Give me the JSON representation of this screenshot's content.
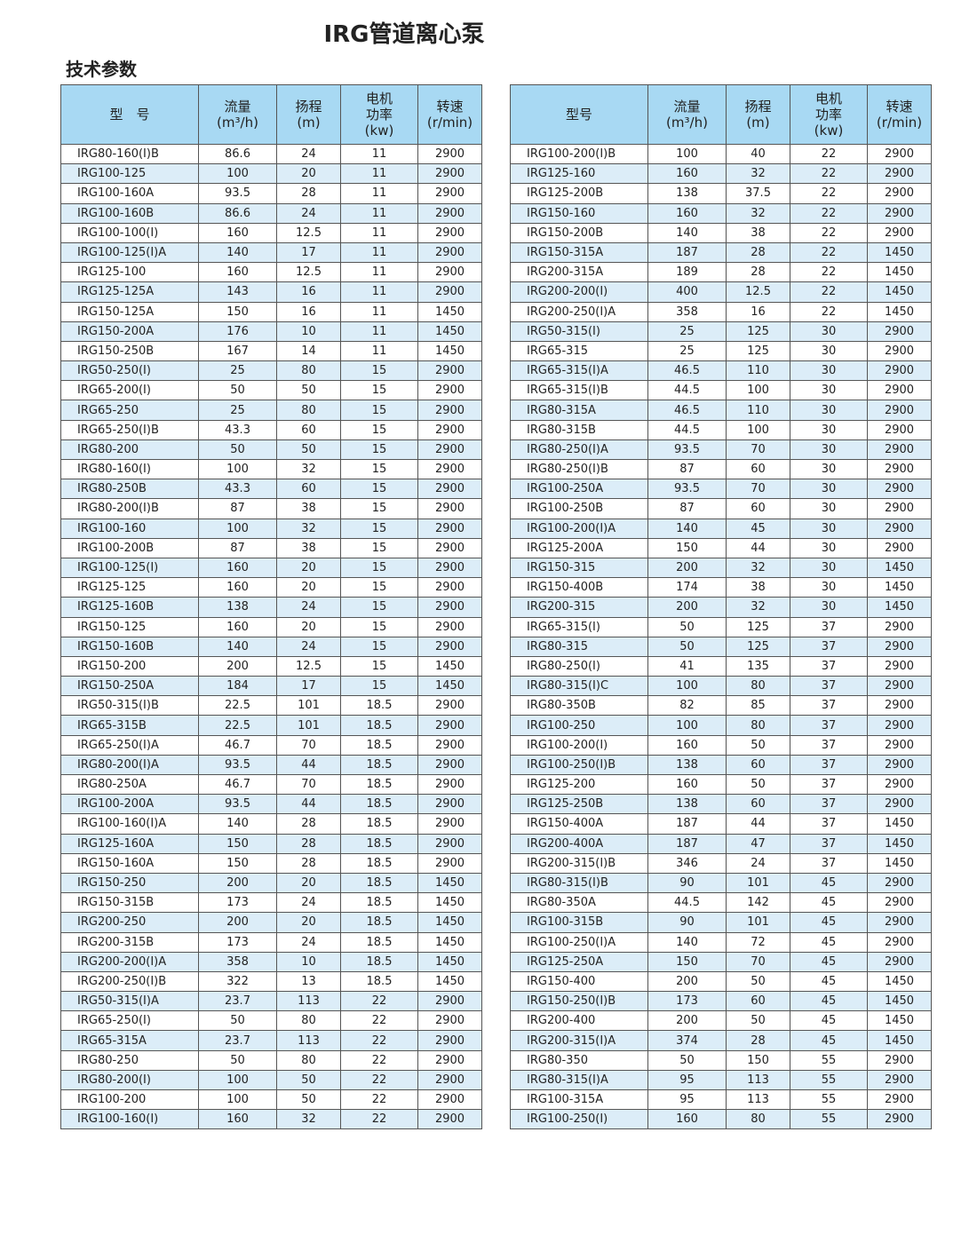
{
  "title": "IRG管道离心泵",
  "subtitle": "技术参数",
  "headers": {
    "model_left": "型　号",
    "model_right": "型号",
    "flow": "流量",
    "flow_unit": "(m³/h)",
    "head": "扬程",
    "head_unit": "(m)",
    "power": "电机功率",
    "power_unit": "(kw)",
    "speed": "转速",
    "speed_unit": "(r/min)"
  },
  "colors": {
    "header_bg": "#a8d9f3",
    "stripe": "#dcedf8",
    "border": "#555555"
  },
  "left_rows": [
    [
      "IRG80-160(I)B",
      "86.6",
      "24",
      "11",
      "2900"
    ],
    [
      "IRG100-125",
      "100",
      "20",
      "11",
      "2900"
    ],
    [
      "IRG100-160A",
      "93.5",
      "28",
      "11",
      "2900"
    ],
    [
      "IRG100-160B",
      "86.6",
      "24",
      "11",
      "2900"
    ],
    [
      "IRG100-100(I)",
      "160",
      "12.5",
      "11",
      "2900"
    ],
    [
      "IRG100-125(I)A",
      "140",
      "17",
      "11",
      "2900"
    ],
    [
      "IRG125-100",
      "160",
      "12.5",
      "11",
      "2900"
    ],
    [
      "IRG125-125A",
      "143",
      "16",
      "11",
      "2900"
    ],
    [
      "IRG150-125A",
      "150",
      "16",
      "11",
      "1450"
    ],
    [
      "IRG150-200A",
      "176",
      "10",
      "11",
      "1450"
    ],
    [
      "IRG150-250B",
      "167",
      "14",
      "11",
      "1450"
    ],
    [
      "IRG50-250(I)",
      "25",
      "80",
      "15",
      "2900"
    ],
    [
      "IRG65-200(I)",
      "50",
      "50",
      "15",
      "2900"
    ],
    [
      "IRG65-250",
      "25",
      "80",
      "15",
      "2900"
    ],
    [
      "IRG65-250(I)B",
      "43.3",
      "60",
      "15",
      "2900"
    ],
    [
      "IRG80-200",
      "50",
      "50",
      "15",
      "2900"
    ],
    [
      "IRG80-160(I)",
      "100",
      "32",
      "15",
      "2900"
    ],
    [
      "IRG80-250B",
      "43.3",
      "60",
      "15",
      "2900"
    ],
    [
      "IRG80-200(I)B",
      "87",
      "38",
      "15",
      "2900"
    ],
    [
      "IRG100-160",
      "100",
      "32",
      "15",
      "2900"
    ],
    [
      "IRG100-200B",
      "87",
      "38",
      "15",
      "2900"
    ],
    [
      "IRG100-125(I)",
      "160",
      "20",
      "15",
      "2900"
    ],
    [
      "IRG125-125",
      "160",
      "20",
      "15",
      "2900"
    ],
    [
      "IRG125-160B",
      "138",
      "24",
      "15",
      "2900"
    ],
    [
      "IRG150-125",
      "160",
      "20",
      "15",
      "2900"
    ],
    [
      "IRG150-160B",
      "140",
      "24",
      "15",
      "2900"
    ],
    [
      "IRG150-200",
      "200",
      "12.5",
      "15",
      "1450"
    ],
    [
      "IRG150-250A",
      "184",
      "17",
      "15",
      "1450"
    ],
    [
      "IRG50-315(I)B",
      "22.5",
      "101",
      "18.5",
      "2900"
    ],
    [
      "IRG65-315B",
      "22.5",
      "101",
      "18.5",
      "2900"
    ],
    [
      "IRG65-250(I)A",
      "46.7",
      "70",
      "18.5",
      "2900"
    ],
    [
      "IRG80-200(I)A",
      "93.5",
      "44",
      "18.5",
      "2900"
    ],
    [
      "IRG80-250A",
      "46.7",
      "70",
      "18.5",
      "2900"
    ],
    [
      "IRG100-200A",
      "93.5",
      "44",
      "18.5",
      "2900"
    ],
    [
      "IRG100-160(I)A",
      "140",
      "28",
      "18.5",
      "2900"
    ],
    [
      "IRG125-160A",
      "150",
      "28",
      "18.5",
      "2900"
    ],
    [
      "IRG150-160A",
      "150",
      "28",
      "18.5",
      "2900"
    ],
    [
      "IRG150-250",
      "200",
      "20",
      "18.5",
      "1450"
    ],
    [
      "IRG150-315B",
      "173",
      "24",
      "18.5",
      "1450"
    ],
    [
      "IRG200-250",
      "200",
      "20",
      "18.5",
      "1450"
    ],
    [
      "IRG200-315B",
      "173",
      "24",
      "18.5",
      "1450"
    ],
    [
      "IRG200-200(I)A",
      "358",
      "10",
      "18.5",
      "1450"
    ],
    [
      "IRG200-250(I)B",
      "322",
      "13",
      "18.5",
      "1450"
    ],
    [
      "IRG50-315(I)A",
      "23.7",
      "113",
      "22",
      "2900"
    ],
    [
      "IRG65-250(I)",
      "50",
      "80",
      "22",
      "2900"
    ],
    [
      "IRG65-315A",
      "23.7",
      "113",
      "22",
      "2900"
    ],
    [
      "IRG80-250",
      "50",
      "80",
      "22",
      "2900"
    ],
    [
      "IRG80-200(I)",
      "100",
      "50",
      "22",
      "2900"
    ],
    [
      "IRG100-200",
      "100",
      "50",
      "22",
      "2900"
    ],
    [
      "IRG100-160(I)",
      "160",
      "32",
      "22",
      "2900"
    ]
  ],
  "right_rows": [
    [
      "IRG100-200(I)B",
      "100",
      "40",
      "22",
      "2900"
    ],
    [
      "IRG125-160",
      "160",
      "32",
      "22",
      "2900"
    ],
    [
      "IRG125-200B",
      "138",
      "37.5",
      "22",
      "2900"
    ],
    [
      "IRG150-160",
      "160",
      "32",
      "22",
      "2900"
    ],
    [
      "IRG150-200B",
      "140",
      "38",
      "22",
      "2900"
    ],
    [
      "IRG150-315A",
      "187",
      "28",
      "22",
      "1450"
    ],
    [
      "IRG200-315A",
      "189",
      "28",
      "22",
      "1450"
    ],
    [
      "IRG200-200(I)",
      "400",
      "12.5",
      "22",
      "1450"
    ],
    [
      "IRG200-250(I)A",
      "358",
      "16",
      "22",
      "1450"
    ],
    [
      "IRG50-315(I)",
      "25",
      "125",
      "30",
      "2900"
    ],
    [
      "IRG65-315",
      "25",
      "125",
      "30",
      "2900"
    ],
    [
      "IRG65-315(I)A",
      "46.5",
      "110",
      "30",
      "2900"
    ],
    [
      "IRG65-315(I)B",
      "44.5",
      "100",
      "30",
      "2900"
    ],
    [
      "IRG80-315A",
      "46.5",
      "110",
      "30",
      "2900"
    ],
    [
      "IRG80-315B",
      "44.5",
      "100",
      "30",
      "2900"
    ],
    [
      "IRG80-250(I)A",
      "93.5",
      "70",
      "30",
      "2900"
    ],
    [
      "IRG80-250(I)B",
      "87",
      "60",
      "30",
      "2900"
    ],
    [
      "IRG100-250A",
      "93.5",
      "70",
      "30",
      "2900"
    ],
    [
      "IRG100-250B",
      "87",
      "60",
      "30",
      "2900"
    ],
    [
      "IRG100-200(I)A",
      "140",
      "45",
      "30",
      "2900"
    ],
    [
      "IRG125-200A",
      "150",
      "44",
      "30",
      "2900"
    ],
    [
      "IRG150-315",
      "200",
      "32",
      "30",
      "1450"
    ],
    [
      "IRG150-400B",
      "174",
      "38",
      "30",
      "1450"
    ],
    [
      "IRG200-315",
      "200",
      "32",
      "30",
      "1450"
    ],
    [
      "IRG65-315(I)",
      "50",
      "125",
      "37",
      "2900"
    ],
    [
      "IRG80-315",
      "50",
      "125",
      "37",
      "2900"
    ],
    [
      "IRG80-250(I)",
      "41",
      "135",
      "37",
      "2900"
    ],
    [
      "IRG80-315(I)C",
      "100",
      "80",
      "37",
      "2900"
    ],
    [
      "IRG80-350B",
      "82",
      "85",
      "37",
      "2900"
    ],
    [
      "IRG100-250",
      "100",
      "80",
      "37",
      "2900"
    ],
    [
      "IRG100-200(I)",
      "160",
      "50",
      "37",
      "2900"
    ],
    [
      "IRG100-250(I)B",
      "138",
      "60",
      "37",
      "2900"
    ],
    [
      "IRG125-200",
      "160",
      "50",
      "37",
      "2900"
    ],
    [
      "IRG125-250B",
      "138",
      "60",
      "37",
      "2900"
    ],
    [
      "IRG150-400A",
      "187",
      "44",
      "37",
      "1450"
    ],
    [
      "IRG200-400A",
      "187",
      "47",
      "37",
      "1450"
    ],
    [
      "IRG200-315(I)B",
      "346",
      "24",
      "37",
      "1450"
    ],
    [
      "IRG80-315(I)B",
      "90",
      "101",
      "45",
      "2900"
    ],
    [
      "IRG80-350A",
      "44.5",
      "142",
      "45",
      "2900"
    ],
    [
      "IRG100-315B",
      "90",
      "101",
      "45",
      "2900"
    ],
    [
      "IRG100-250(I)A",
      "140",
      "72",
      "45",
      "2900"
    ],
    [
      "IRG125-250A",
      "150",
      "70",
      "45",
      "2900"
    ],
    [
      "IRG150-400",
      "200",
      "50",
      "45",
      "1450"
    ],
    [
      "IRG150-250(I)B",
      "173",
      "60",
      "45",
      "1450"
    ],
    [
      "IRG200-400",
      "200",
      "50",
      "45",
      "1450"
    ],
    [
      "IRG200-315(I)A",
      "374",
      "28",
      "45",
      "1450"
    ],
    [
      "IRG80-350",
      "50",
      "150",
      "55",
      "2900"
    ],
    [
      "IRG80-315(I)A",
      "95",
      "113",
      "55",
      "2900"
    ],
    [
      "IRG100-315A",
      "95",
      "113",
      "55",
      "2900"
    ],
    [
      "IRG100-250(I)",
      "160",
      "80",
      "55",
      "2900"
    ]
  ]
}
